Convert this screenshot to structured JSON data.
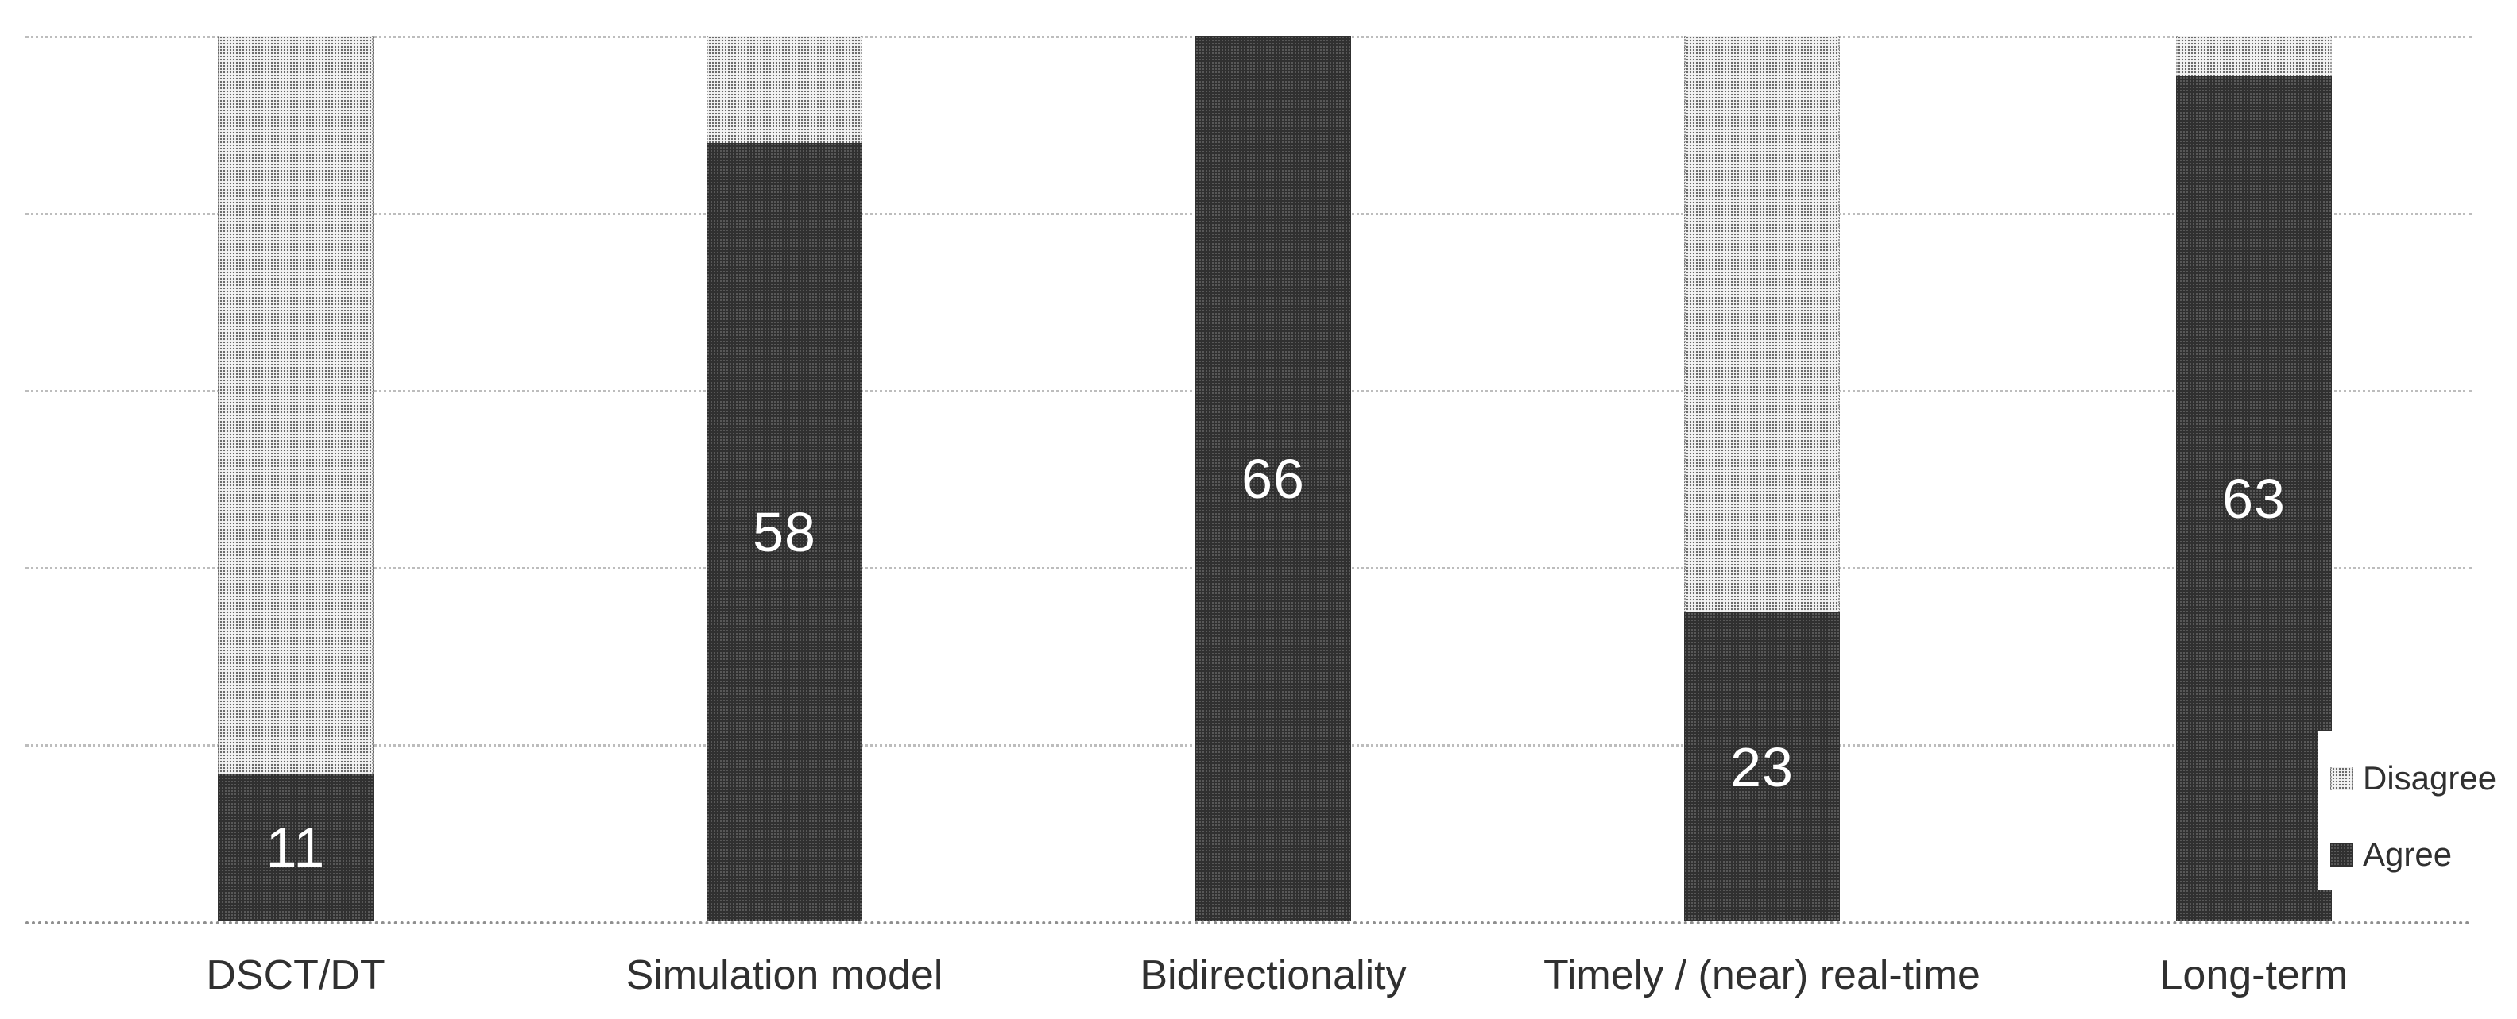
{
  "chart_data": {
    "type": "bar",
    "subtype": "stacked-100-percent-column",
    "title": "",
    "xlabel": "",
    "ylabel": "",
    "categories": [
      "DSCT/DT",
      "Simulation model",
      "Bidirectionality",
      "Timely / (near) real-time",
      "Long-term"
    ],
    "series": [
      {
        "name": "Agree",
        "pattern": "dark-halftone",
        "values": [
          11,
          58,
          66,
          23,
          63
        ]
      },
      {
        "name": "Disagree",
        "pattern": "light-halftone",
        "values": [
          55,
          8,
          0,
          43,
          3
        ]
      }
    ],
    "stack_order_bottom_to_top": [
      "Agree",
      "Disagree"
    ],
    "stack_total": 66,
    "ylim": [
      0,
      66
    ],
    "y_axis_labels_visible": false,
    "gridlines": {
      "count": 6,
      "style": "dotted",
      "orientation": "horizontal"
    },
    "data_labels": {
      "series": "Agree",
      "values": [
        "11",
        "58",
        "66",
        "23",
        "63"
      ]
    },
    "legend": {
      "position": "right",
      "items": [
        {
          "label": "Disagree",
          "swatch": "light-halftone"
        },
        {
          "label": "Agree",
          "swatch": "dark-halftone"
        }
      ]
    }
  },
  "colors": {
    "background": "#ffffff",
    "agree_fill_avg": "#393939",
    "disagree_fill_avg": "#cecece",
    "gridline": "#bdbdbd",
    "axis_line": "#8f8f8f",
    "category_text": "#303030",
    "legend_text": "#303030",
    "data_label_text": "#ffffff"
  }
}
